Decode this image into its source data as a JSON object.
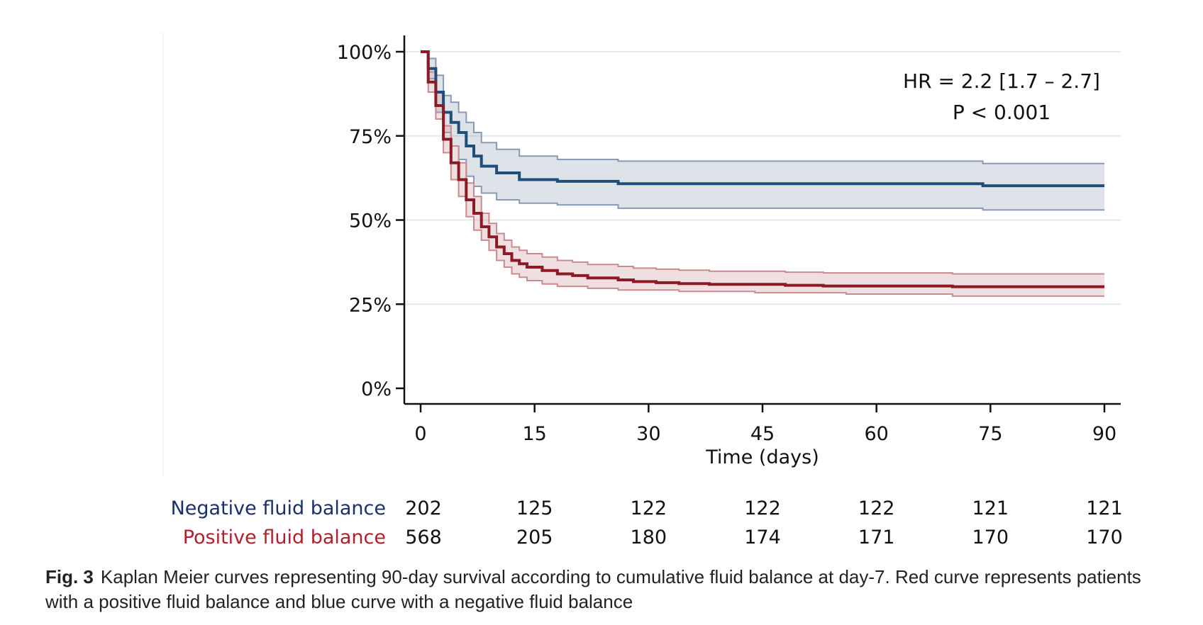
{
  "chart_data": {
    "type": "line",
    "subtype": "kaplan-meier",
    "xlabel": "Time (days)",
    "ylabel": "",
    "xlim": [
      0,
      90
    ],
    "ylim": [
      0,
      100
    ],
    "x_ticks": [
      0,
      15,
      30,
      45,
      60,
      75,
      90
    ],
    "x_tick_labels": [
      "0",
      "15",
      "30",
      "45",
      "60",
      "75",
      "90"
    ],
    "y_ticks": [
      0,
      25,
      50,
      75,
      100
    ],
    "y_tick_labels": [
      "0%",
      "25%",
      "50%",
      "75%",
      "100%"
    ],
    "grid": true,
    "annotation": [
      "HR = 2.2 [1.7 – 2.7]",
      "P < 0.001"
    ],
    "series": [
      {
        "name": "Negative fluid balance",
        "color": "#1f4e79",
        "band_color": "#8a9ab5",
        "steps": [
          [
            0,
            100
          ],
          [
            1,
            100
          ],
          [
            1,
            95
          ],
          [
            2,
            95
          ],
          [
            2,
            88
          ],
          [
            3,
            88
          ],
          [
            3,
            82
          ],
          [
            4,
            82
          ],
          [
            4,
            79
          ],
          [
            5,
            79
          ],
          [
            5,
            76
          ],
          [
            6,
            76
          ],
          [
            6,
            72
          ],
          [
            7,
            72
          ],
          [
            7,
            69
          ],
          [
            8,
            69
          ],
          [
            8,
            66
          ],
          [
            10,
            66
          ],
          [
            10,
            64
          ],
          [
            13,
            64
          ],
          [
            13,
            62
          ],
          [
            18,
            62
          ],
          [
            18,
            61.5
          ],
          [
            26,
            61.5
          ],
          [
            26,
            60.8
          ],
          [
            74,
            60.8
          ],
          [
            74,
            60.2
          ],
          [
            90,
            60.2
          ]
        ],
        "lower": [
          [
            0,
            100
          ],
          [
            1,
            100
          ],
          [
            1,
            92
          ],
          [
            2,
            92
          ],
          [
            2,
            82
          ],
          [
            3,
            82
          ],
          [
            3,
            76
          ],
          [
            4,
            76
          ],
          [
            4,
            72
          ],
          [
            5,
            72
          ],
          [
            5,
            68
          ],
          [
            6,
            68
          ],
          [
            6,
            63
          ],
          [
            7,
            63
          ],
          [
            7,
            60
          ],
          [
            8,
            60
          ],
          [
            8,
            58
          ],
          [
            10,
            58
          ],
          [
            10,
            56
          ],
          [
            13,
            56
          ],
          [
            13,
            55
          ],
          [
            18,
            55
          ],
          [
            18,
            54.5
          ],
          [
            26,
            54.5
          ],
          [
            26,
            53.5
          ],
          [
            74,
            53.5
          ],
          [
            74,
            53
          ],
          [
            90,
            53
          ]
        ],
        "upper": [
          [
            0,
            100
          ],
          [
            1,
            100
          ],
          [
            1,
            98
          ],
          [
            2,
            98
          ],
          [
            2,
            93
          ],
          [
            3,
            93
          ],
          [
            3,
            87
          ],
          [
            4,
            87
          ],
          [
            4,
            85
          ],
          [
            5,
            85
          ],
          [
            5,
            82
          ],
          [
            6,
            82
          ],
          [
            6,
            79
          ],
          [
            7,
            79
          ],
          [
            7,
            76
          ],
          [
            8,
            76
          ],
          [
            8,
            73
          ],
          [
            10,
            73
          ],
          [
            10,
            71
          ],
          [
            13,
            71
          ],
          [
            13,
            69
          ],
          [
            18,
            69
          ],
          [
            18,
            68
          ],
          [
            26,
            68
          ],
          [
            26,
            67.5
          ],
          [
            74,
            67.5
          ],
          [
            74,
            66.8
          ],
          [
            90,
            66.8
          ]
        ]
      },
      {
        "name": "Positive fluid balance",
        "color": "#8b1a24",
        "band_color": "#c98b90",
        "steps": [
          [
            0,
            100
          ],
          [
            1,
            100
          ],
          [
            1,
            91
          ],
          [
            2,
            91
          ],
          [
            2,
            84
          ],
          [
            3,
            84
          ],
          [
            3,
            74
          ],
          [
            4,
            74
          ],
          [
            4,
            67
          ],
          [
            5,
            67
          ],
          [
            5,
            62
          ],
          [
            6,
            62
          ],
          [
            6,
            56
          ],
          [
            7,
            56
          ],
          [
            7,
            52
          ],
          [
            8,
            52
          ],
          [
            8,
            48
          ],
          [
            9,
            48
          ],
          [
            9,
            45
          ],
          [
            10,
            45
          ],
          [
            10,
            42
          ],
          [
            11,
            42
          ],
          [
            11,
            40
          ],
          [
            12,
            40
          ],
          [
            12,
            38
          ],
          [
            13,
            38
          ],
          [
            13,
            37
          ],
          [
            14,
            37
          ],
          [
            14,
            36
          ],
          [
            16,
            36
          ],
          [
            16,
            35
          ],
          [
            18,
            35
          ],
          [
            18,
            34
          ],
          [
            20,
            34
          ],
          [
            20,
            33.5
          ],
          [
            22,
            33.5
          ],
          [
            22,
            32.8
          ],
          [
            26,
            32.8
          ],
          [
            26,
            32.2
          ],
          [
            28,
            32.2
          ],
          [
            28,
            31.7
          ],
          [
            31,
            31.7
          ],
          [
            31,
            31.4
          ],
          [
            34,
            31.4
          ],
          [
            34,
            31.1
          ],
          [
            38,
            31.1
          ],
          [
            38,
            30.9
          ],
          [
            48,
            30.9
          ],
          [
            48,
            30.6
          ],
          [
            53,
            30.6
          ],
          [
            53,
            30.4
          ],
          [
            70,
            30.4
          ],
          [
            70,
            30.2
          ],
          [
            90,
            30.2
          ]
        ],
        "lower": [
          [
            0,
            100
          ],
          [
            1,
            100
          ],
          [
            1,
            88
          ],
          [
            2,
            88
          ],
          [
            2,
            80
          ],
          [
            3,
            80
          ],
          [
            3,
            70
          ],
          [
            4,
            70
          ],
          [
            4,
            62
          ],
          [
            5,
            62
          ],
          [
            5,
            57
          ],
          [
            6,
            57
          ],
          [
            6,
            51
          ],
          [
            7,
            51
          ],
          [
            7,
            47
          ],
          [
            8,
            47
          ],
          [
            8,
            44
          ],
          [
            9,
            44
          ],
          [
            9,
            41
          ],
          [
            10,
            41
          ],
          [
            10,
            38
          ],
          [
            11,
            38
          ],
          [
            11,
            36
          ],
          [
            12,
            36
          ],
          [
            12,
            34
          ],
          [
            13,
            34
          ],
          [
            13,
            33
          ],
          [
            14,
            33
          ],
          [
            14,
            32
          ],
          [
            16,
            32
          ],
          [
            16,
            31
          ],
          [
            18,
            31
          ],
          [
            18,
            30.3
          ],
          [
            22,
            30.3
          ],
          [
            22,
            29.7
          ],
          [
            26,
            29.7
          ],
          [
            26,
            29.2
          ],
          [
            34,
            29.2
          ],
          [
            34,
            28.8
          ],
          [
            44,
            28.8
          ],
          [
            44,
            28.4
          ],
          [
            56,
            28.4
          ],
          [
            56,
            28
          ],
          [
            70,
            28
          ],
          [
            70,
            27.4
          ],
          [
            90,
            27.4
          ]
        ],
        "upper": [
          [
            0,
            100
          ],
          [
            1,
            100
          ],
          [
            1,
            94
          ],
          [
            2,
            94
          ],
          [
            2,
            88
          ],
          [
            3,
            88
          ],
          [
            3,
            78
          ],
          [
            4,
            78
          ],
          [
            4,
            72
          ],
          [
            5,
            72
          ],
          [
            5,
            67
          ],
          [
            6,
            67
          ],
          [
            6,
            61
          ],
          [
            7,
            61
          ],
          [
            7,
            57
          ],
          [
            8,
            57
          ],
          [
            8,
            52
          ],
          [
            9,
            52
          ],
          [
            9,
            49
          ],
          [
            10,
            49
          ],
          [
            10,
            46
          ],
          [
            11,
            46
          ],
          [
            11,
            44
          ],
          [
            12,
            44
          ],
          [
            12,
            42
          ],
          [
            13,
            42
          ],
          [
            13,
            41
          ],
          [
            14,
            41
          ],
          [
            14,
            40
          ],
          [
            16,
            40
          ],
          [
            16,
            39
          ],
          [
            18,
            39
          ],
          [
            18,
            38
          ],
          [
            20,
            38
          ],
          [
            20,
            37.5
          ],
          [
            22,
            37.5
          ],
          [
            22,
            36.8
          ],
          [
            26,
            36.8
          ],
          [
            26,
            36.2
          ],
          [
            28,
            36.2
          ],
          [
            28,
            35.7
          ],
          [
            31,
            35.7
          ],
          [
            31,
            35.4
          ],
          [
            34,
            35.4
          ],
          [
            34,
            35.1
          ],
          [
            38,
            35.1
          ],
          [
            38,
            34.8
          ],
          [
            48,
            34.8
          ],
          [
            48,
            34.5
          ],
          [
            53,
            34.5
          ],
          [
            53,
            34.3
          ],
          [
            70,
            34.3
          ],
          [
            70,
            34
          ],
          [
            90,
            34
          ]
        ]
      }
    ],
    "number_at_risk": {
      "times": [
        0,
        15,
        30,
        45,
        60,
        75,
        90
      ],
      "rows": [
        {
          "label": "Negative fluid balance",
          "color": "#1b2f6b",
          "values": [
            "202",
            "125",
            "122",
            "122",
            "122",
            "121",
            "121"
          ]
        },
        {
          "label": "Positive fluid balance",
          "color": "#b21f2c",
          "values": [
            "568",
            "205",
            "180",
            "174",
            "171",
            "170",
            "170"
          ]
        }
      ]
    }
  },
  "caption": {
    "label": "Fig. 3",
    "text": "Kaplan Meier curves representing 90-day survival according to cumulative fluid balance at day-7. Red curve represents patients with a positive fluid balance and blue curve with a negative fluid balance"
  }
}
